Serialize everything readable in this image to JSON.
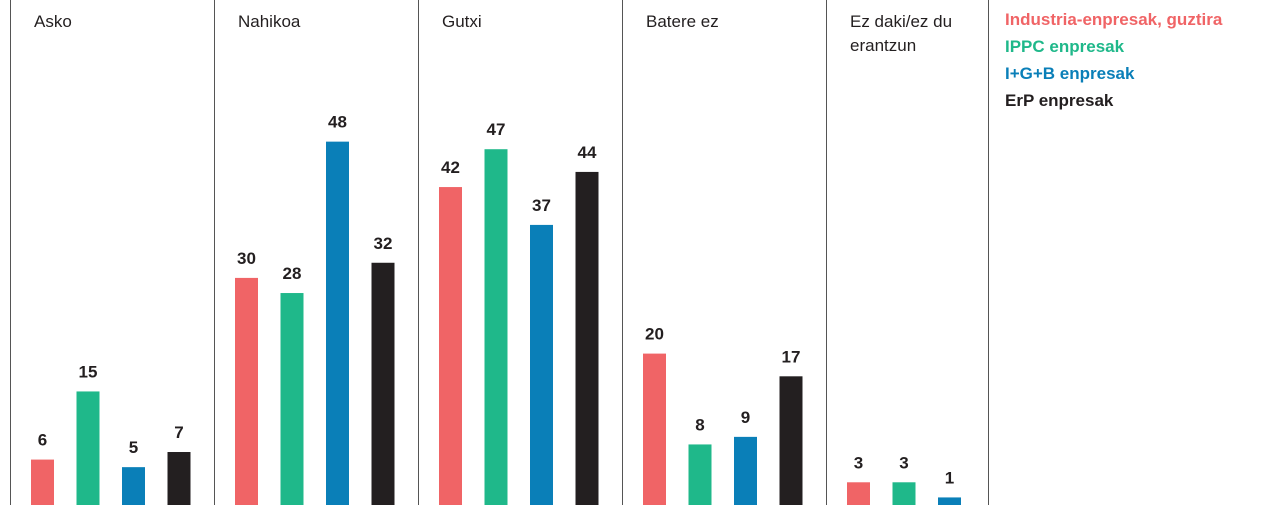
{
  "chart_data": {
    "type": "bar",
    "categories": [
      "Asko",
      "Nahikoa",
      "Gutxi",
      "Batere ez",
      "Ez daki/ez du erantzun"
    ],
    "series": [
      {
        "name": "Industria-enpresak, guztira",
        "color": "#f06466",
        "values": [
          6,
          30,
          42,
          20,
          3
        ]
      },
      {
        "name": "IPPC enpresak",
        "color": "#1fb88a",
        "values": [
          15,
          28,
          47,
          8,
          3
        ]
      },
      {
        "name": "I+G+B enpresak",
        "color": "#0a7fb8",
        "values": [
          5,
          48,
          37,
          9,
          1
        ]
      },
      {
        "name": "ErP enpresak",
        "color": "#231f20",
        "values": [
          7,
          32,
          44,
          17,
          null
        ]
      }
    ]
  }
}
